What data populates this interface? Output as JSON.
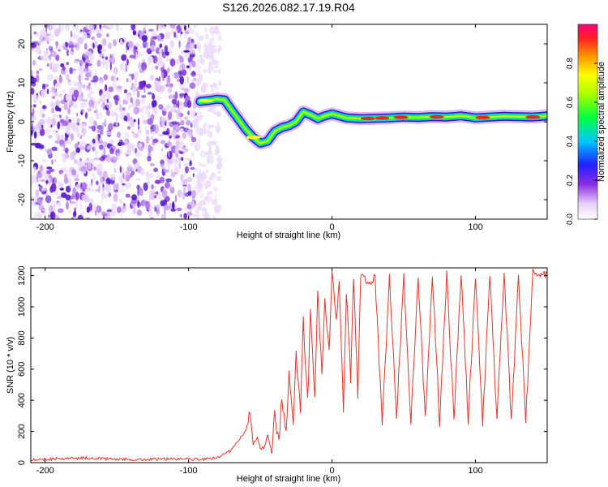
{
  "figure_title": "S126.2026.082.17.19.R04",
  "chart_data": [
    {
      "type": "heatmap",
      "title": "S126.2026.082.17.19.R04",
      "xlabel": "Height of straight line (km)",
      "ylabel": "Frequency (Hz)",
      "xlim": [
        -210,
        150
      ],
      "ylim": [
        -25,
        25
      ],
      "xticks": [
        -200,
        -100,
        0,
        100
      ],
      "yticks": [
        -20,
        -10,
        0,
        10,
        20
      ],
      "xtick_labels": [
        "-200",
        "-100",
        "0",
        "100"
      ],
      "ytick_labels": [
        "-20",
        "-10",
        "0",
        "10",
        "20"
      ],
      "noise_region_x": [
        -210,
        -82
      ],
      "trace": {
        "x": [
          -92,
          -85,
          -80,
          -75,
          -70,
          -65,
          -60,
          -55,
          -50,
          -45,
          -40,
          -35,
          -30,
          -25,
          -20,
          -15,
          -10,
          -5,
          0,
          10,
          20,
          30,
          40,
          50,
          60,
          70,
          80,
          90,
          100,
          110,
          120,
          130,
          140,
          150
        ],
        "frequency": [
          5.2,
          5.5,
          5.8,
          5.6,
          3.0,
          0.5,
          -2.0,
          -4.0,
          -5.5,
          -5.0,
          -2.5,
          -1.5,
          -1.0,
          0.0,
          2.5,
          1.8,
          0.8,
          1.5,
          2.0,
          1.0,
          0.8,
          0.9,
          1.0,
          1.2,
          1.1,
          1.3,
          1.2,
          1.5,
          1.0,
          1.2,
          1.4,
          1.3,
          1.2,
          1.5
        ]
      },
      "colorbar": {
        "label": "Normalized spectral amplitude",
        "range": [
          0,
          1
        ],
        "ticks": [
          0.0,
          0.2,
          0.4,
          0.6,
          0.8
        ],
        "tick_labels": [
          "0.0",
          "0.2",
          "0.4",
          "0.6",
          "0.8"
        ]
      }
    },
    {
      "type": "line",
      "xlabel": "Height of straight line (km)",
      "ylabel": "SNR (10 * v/v)",
      "xlim": [
        -210,
        150
      ],
      "ylim": [
        0,
        1250
      ],
      "xticks": [
        -200,
        -100,
        0,
        100
      ],
      "yticks": [
        0,
        200,
        400,
        600,
        800,
        1000,
        1200
      ],
      "xtick_labels": [
        "-200",
        "-100",
        "0",
        "100"
      ],
      "ytick_labels": [
        "0",
        "200",
        "400",
        "600",
        "800",
        "1000",
        "1200"
      ],
      "color": "#e8332a",
      "series": [
        {
          "name": "SNR",
          "x": [
            -210,
            -190,
            -170,
            -150,
            -130,
            -110,
            -90,
            -80,
            -70,
            -65,
            -60,
            -57,
            -55,
            -52,
            -50,
            -47,
            -45,
            -42,
            -40,
            -37,
            -35,
            -32,
            -30,
            -27,
            -25,
            -22,
            -20,
            -17,
            -15,
            -12,
            -10,
            -7,
            -5,
            -2,
            0,
            3,
            5,
            8,
            10,
            13,
            15,
            18,
            20,
            25,
            30,
            35,
            40,
            45,
            50,
            55,
            60,
            65,
            70,
            75,
            80,
            85,
            90,
            95,
            100,
            105,
            110,
            115,
            120,
            125,
            130,
            135,
            140,
            145,
            150
          ],
          "values": [
            20,
            25,
            30,
            22,
            20,
            25,
            20,
            30,
            80,
            150,
            200,
            320,
            120,
            160,
            90,
            100,
            180,
            60,
            300,
            150,
            420,
            200,
            550,
            250,
            700,
            320,
            920,
            380,
            1000,
            420,
            1100,
            600,
            1050,
            700,
            1230,
            900,
            1150,
            350,
            1100,
            550,
            1200,
            420,
            1200,
            1150,
            1190,
            260,
            1200,
            270,
            1195,
            265,
            1210,
            270,
            1200,
            260,
            1210,
            270,
            1220,
            265,
            1200,
            260,
            1210,
            270,
            1220,
            265,
            1200,
            262,
            1220,
            1200,
            1210
          ]
        }
      ]
    }
  ]
}
